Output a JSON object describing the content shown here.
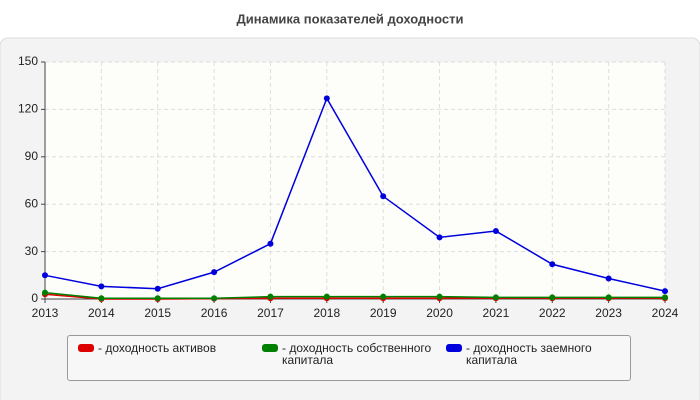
{
  "chart_data": {
    "type": "line",
    "title": "Динамика показателей доходности",
    "categories": [
      "2013",
      "2014",
      "2015",
      "2016",
      "2017",
      "2018",
      "2019",
      "2020",
      "2021",
      "2022",
      "2023",
      "2024"
    ],
    "series": [
      {
        "name": "- доходность активов",
        "color": "#dd0000",
        "values": [
          3,
          0,
          0,
          0.2,
          0.5,
          0.5,
          0.5,
          0.5,
          0.5,
          0.5,
          0.5,
          0.5
        ]
      },
      {
        "name": "- доходность собственного капитала",
        "color": "#008000",
        "values": [
          4,
          0.5,
          0.5,
          0.5,
          1.5,
          1.5,
          1.5,
          1.5,
          1,
          1,
          1,
          1
        ]
      },
      {
        "name": "- доходность заемного капитала",
        "color": "#0000dd",
        "values": [
          15,
          8,
          6.5,
          17,
          35,
          127,
          65,
          39,
          43,
          22,
          13,
          5
        ]
      }
    ],
    "ylim": [
      0,
      150
    ],
    "yticks": [
      0,
      30,
      60,
      90,
      120,
      150
    ],
    "grid": true
  }
}
